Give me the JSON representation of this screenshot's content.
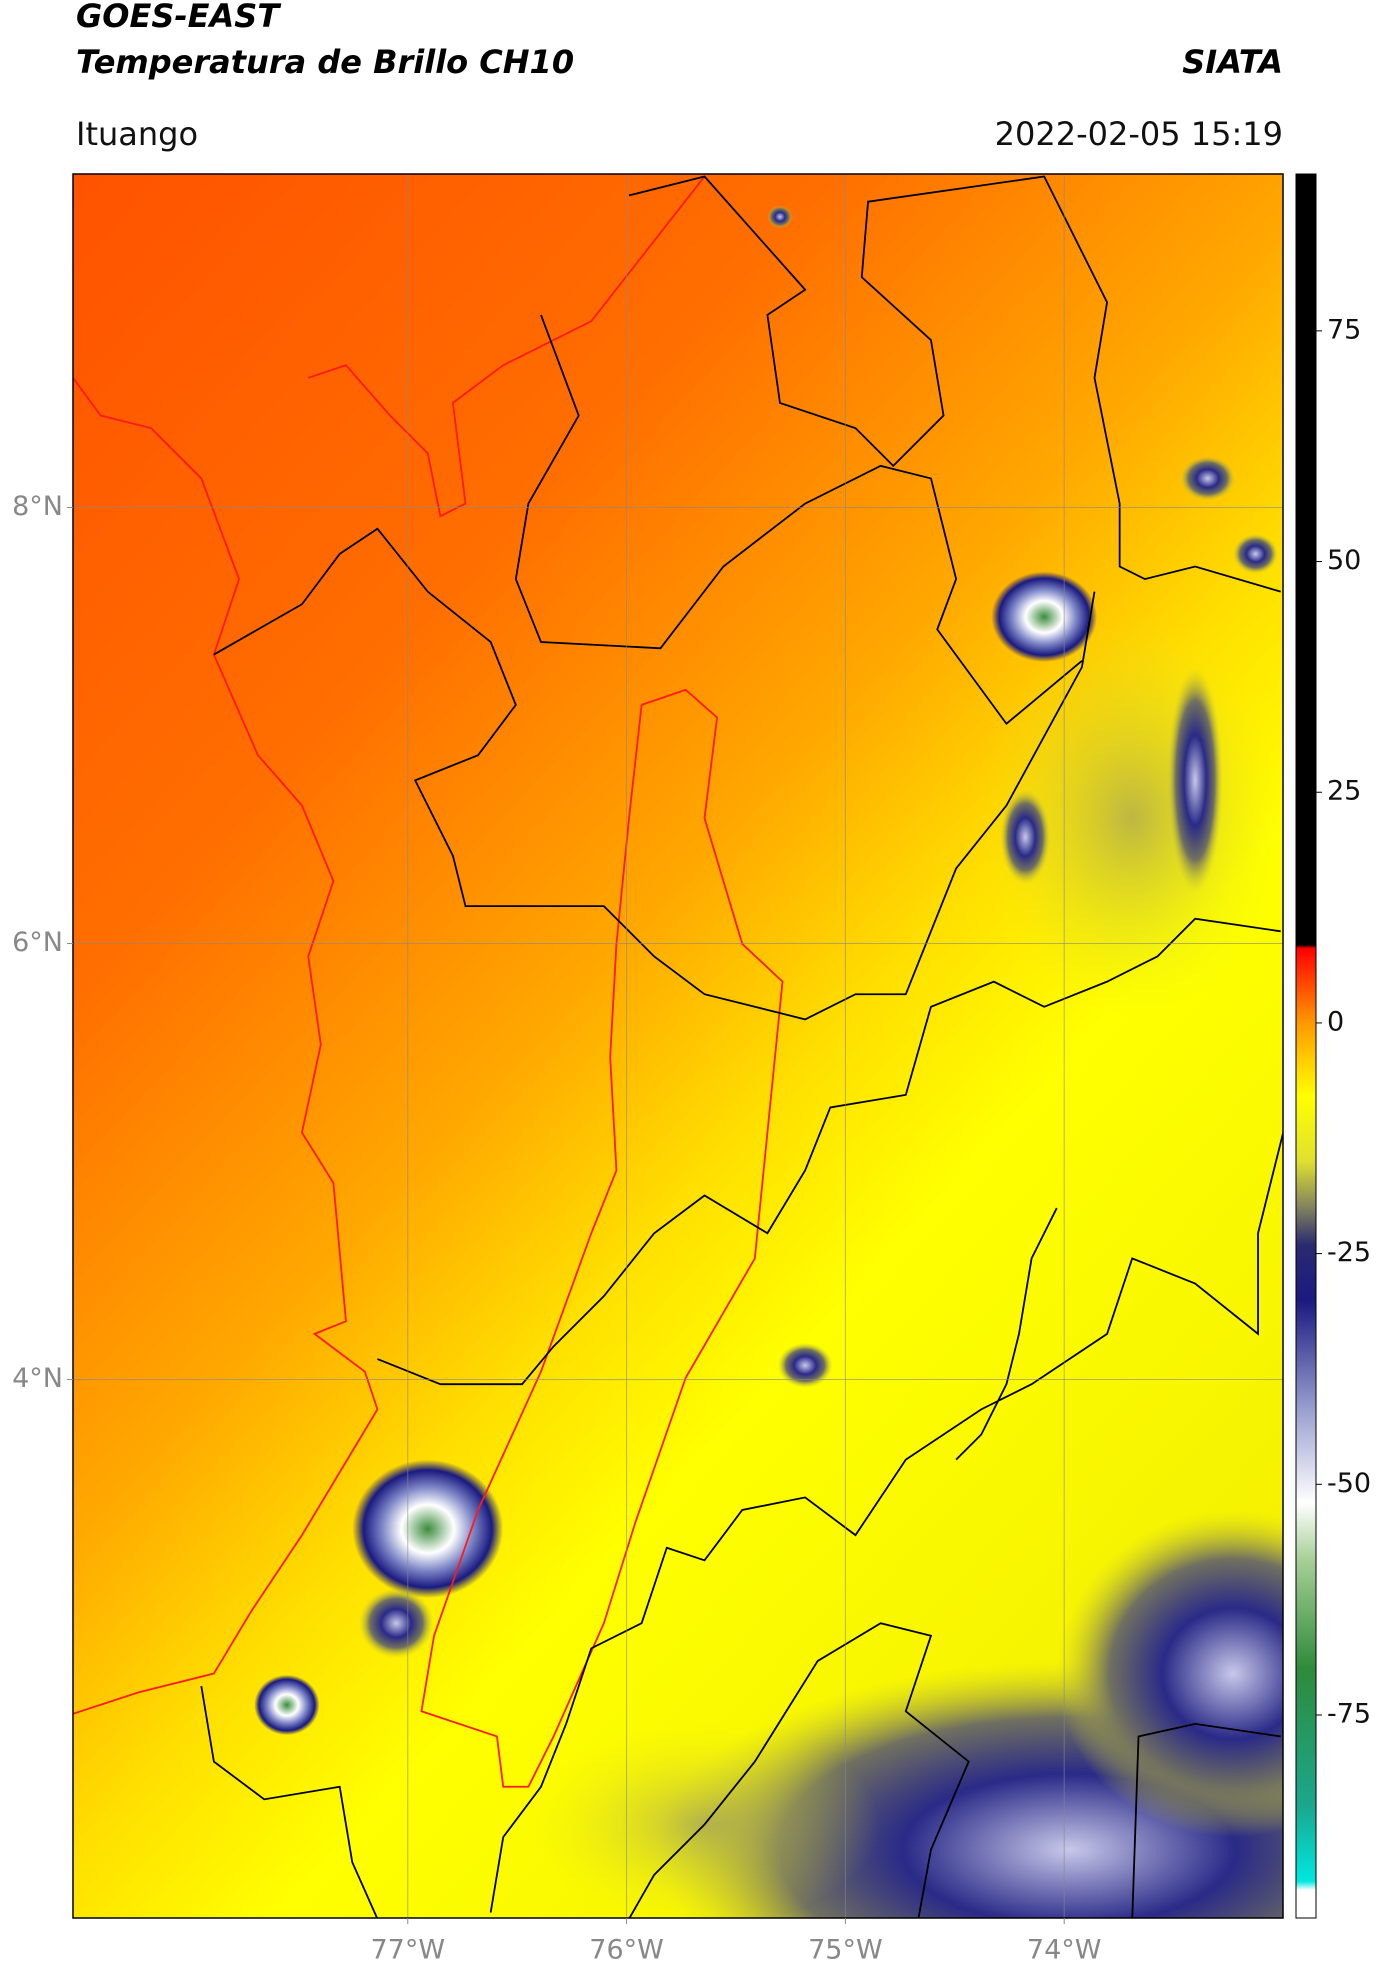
{
  "header": {
    "satellite": "GOES-EAST",
    "product": "Temperatura de Brillo CH10",
    "source": "SIATA",
    "region": "Ituango",
    "datetime": "2022-02-05 15:19"
  },
  "chart_data": {
    "type": "map",
    "xlim": [
      -78.53,
      -73.0
    ],
    "ylim": [
      1.53,
      9.53
    ],
    "xticks": [
      {
        "value": -77,
        "label": "77°W"
      },
      {
        "value": -76,
        "label": "76°W"
      },
      {
        "value": -75,
        "label": "75°W"
      },
      {
        "value": -74,
        "label": "74°W"
      }
    ],
    "yticks": [
      {
        "value": 8,
        "label": "8°N"
      },
      {
        "value": 6,
        "label": "6°N"
      },
      {
        "value": 4,
        "label": "4°N"
      }
    ],
    "grid": true,
    "colorbar": {
      "lim": [
        -97,
        92
      ],
      "ticks": [
        75,
        50,
        25,
        0,
        -25,
        -50,
        -75
      ]
    }
  }
}
